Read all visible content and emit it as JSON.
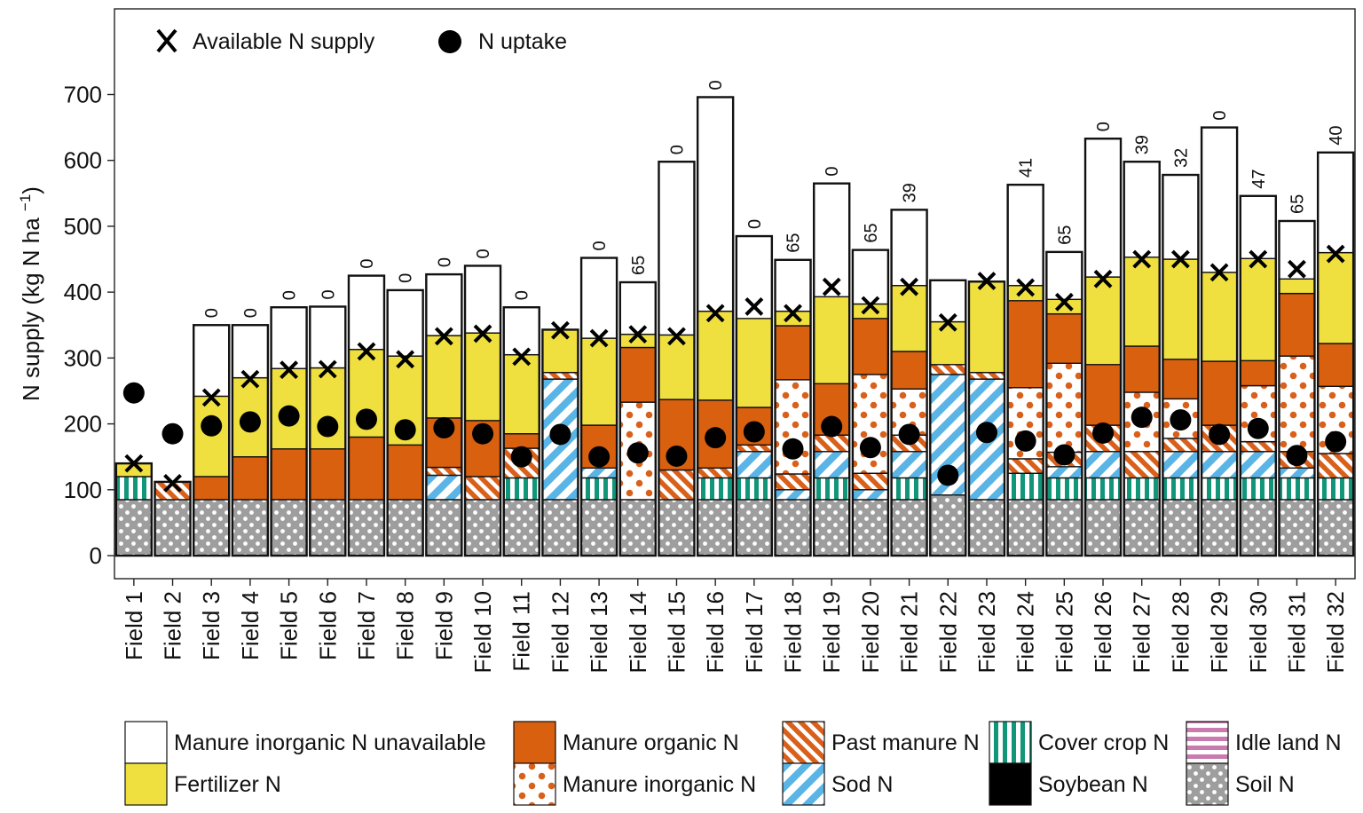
{
  "chart_data": {
    "type": "bar",
    "stacked": true,
    "ylabel": "N supply (kg N ha",
    "ylabel_sup": "−1",
    "ylabel_close": ")",
    "ylim": [
      -35,
      830
    ],
    "yticks": [
      0,
      100,
      200,
      300,
      400,
      500,
      600,
      700
    ],
    "ytick_labels": [
      "0",
      "100",
      "200",
      "300",
      "400",
      "500",
      "600",
      "700"
    ],
    "categories": [
      "Field 1",
      "Field 2",
      "Field 3",
      "Field 4",
      "Field 5",
      "Field 6",
      "Field 7",
      "Field 8",
      "Field 9",
      "Field 10",
      "Field 11",
      "Field 12",
      "Field 13",
      "Field 14",
      "Field 15",
      "Field 16",
      "Field 17",
      "Field 18",
      "Field 19",
      "Field 20",
      "Field 21",
      "Field 22",
      "Field 23",
      "Field 24",
      "Field 25",
      "Field 26",
      "Field 27",
      "Field 28",
      "Field 29",
      "Field 30",
      "Field 31",
      "Field 32"
    ],
    "series": [
      {
        "key": "soil",
        "name": "Soil N",
        "color": "#9e9e9e",
        "values": [
          85,
          85,
          85,
          85,
          85,
          85,
          85,
          85,
          85,
          85,
          85,
          85,
          85,
          85,
          85,
          85,
          85,
          85,
          85,
          85,
          85,
          92,
          85,
          85,
          85,
          85,
          85,
          85,
          85,
          85,
          85,
          85
        ]
      },
      {
        "key": "idle",
        "name": "Idle land N",
        "color": "#c97bb0",
        "values": [
          0,
          0,
          0,
          0,
          0,
          0,
          0,
          0,
          0,
          0,
          0,
          0,
          0,
          0,
          0,
          0,
          0,
          0,
          0,
          0,
          0,
          0,
          0,
          0,
          0,
          0,
          0,
          0,
          0,
          0,
          0,
          0
        ]
      },
      {
        "key": "soy",
        "name": "Soybean N",
        "color": "#000000",
        "values": [
          0,
          0,
          0,
          0,
          0,
          0,
          0,
          0,
          0,
          0,
          0,
          0,
          0,
          0,
          0,
          0,
          0,
          0,
          0,
          0,
          0,
          0,
          0,
          0,
          0,
          0,
          0,
          0,
          0,
          0,
          0,
          0
        ]
      },
      {
        "key": "cover",
        "name": "Cover crop N",
        "color": "#11967a",
        "values": [
          35,
          0,
          0,
          0,
          0,
          0,
          0,
          0,
          0,
          0,
          33,
          0,
          33,
          0,
          0,
          33,
          33,
          0,
          33,
          0,
          33,
          0,
          0,
          40,
          33,
          33,
          33,
          33,
          33,
          33,
          33,
          33
        ]
      },
      {
        "key": "sod",
        "name": "Sod N",
        "color": "#5ab4e5",
        "values": [
          0,
          0,
          0,
          0,
          0,
          0,
          0,
          0,
          37,
          0,
          0,
          183,
          15,
          0,
          0,
          0,
          40,
          15,
          40,
          15,
          40,
          183,
          183,
          0,
          17,
          40,
          0,
          40,
          40,
          40,
          15,
          0
        ]
      },
      {
        "key": "past",
        "name": "Past manure N",
        "color": "#d9601a",
        "values": [
          0,
          27,
          0,
          0,
          0,
          0,
          0,
          0,
          12,
          35,
          45,
          10,
          0,
          0,
          45,
          15,
          10,
          24,
          25,
          25,
          25,
          15,
          10,
          22,
          22,
          40,
          40,
          20,
          40,
          15,
          25,
          37
        ]
      },
      {
        "key": "minorg",
        "name": "Manure inorganic N",
        "color": "#d9601a",
        "values": [
          0,
          0,
          0,
          0,
          0,
          0,
          0,
          0,
          0,
          0,
          0,
          0,
          0,
          148,
          0,
          0,
          0,
          143,
          0,
          150,
          70,
          0,
          0,
          108,
          135,
          0,
          90,
          60,
          0,
          85,
          145,
          102
        ]
      },
      {
        "key": "morg",
        "name": "Manure organic N",
        "color": "#d9600f",
        "values": [
          0,
          0,
          35,
          65,
          77,
          77,
          95,
          83,
          75,
          85,
          22,
          0,
          65,
          83,
          107,
          103,
          57,
          82,
          78,
          85,
          57,
          0,
          0,
          132,
          75,
          92,
          70,
          60,
          97,
          38,
          95,
          65
        ]
      },
      {
        "key": "fert",
        "name": "Fertilizer N",
        "color": "#f0e03f",
        "values": [
          20,
          0,
          122,
          120,
          122,
          123,
          133,
          135,
          125,
          133,
          120,
          65,
          132,
          20,
          98,
          135,
          135,
          22,
          132,
          22,
          100,
          65,
          138,
          23,
          22,
          133,
          135,
          152,
          135,
          155,
          22,
          138
        ]
      },
      {
        "key": "unav",
        "name": "Manure inorganic N unavailable",
        "color": "#ffffff",
        "values": [
          0,
          0,
          108,
          80,
          93,
          93,
          112,
          100,
          93,
          102,
          72,
          0,
          122,
          79,
          263,
          325,
          125,
          78,
          172,
          82,
          115,
          63,
          0,
          153,
          72,
          210,
          145,
          128,
          220,
          95,
          88,
          152
        ]
      }
    ],
    "available_n_supply": {
      "name": "Available N supply",
      "values": [
        140,
        110,
        240,
        268,
        282,
        283,
        310,
        298,
        333,
        337,
        302,
        342,
        330,
        336,
        333,
        368,
        378,
        368,
        408,
        380,
        408,
        354,
        417,
        407,
        385,
        420,
        450,
        450,
        430,
        450,
        435,
        458
      ]
    },
    "n_uptake": {
      "name": "N uptake",
      "values": [
        247,
        185,
        197,
        203,
        212,
        196,
        207,
        191,
        194,
        185,
        150,
        184,
        150,
        156,
        151,
        179,
        188,
        162,
        196,
        164,
        184,
        122,
        187,
        174,
        153,
        186,
        210,
        206,
        184,
        193,
        152,
        173
      ]
    },
    "bar_top_labels": [
      "",
      "",
      "0",
      "0",
      "0",
      "0",
      "0",
      "0",
      "0",
      "0",
      "0",
      "",
      "0",
      "65",
      "0",
      "0",
      "0",
      "65",
      "0",
      "65",
      "39",
      "",
      "",
      "41",
      "65",
      "0",
      "39",
      "32",
      "0",
      "47",
      "65",
      "40"
    ],
    "legend": {
      "top": {
        "x_label": "Available N supply",
        "dot_label": "N uptake"
      },
      "bottom": [
        {
          "key": "unav",
          "label": "Manure inorganic N unavailable"
        },
        {
          "key": "morg",
          "label": "Manure organic N"
        },
        {
          "key": "past",
          "label": "Past manure N"
        },
        {
          "key": "cover",
          "label": "Cover crop N"
        },
        {
          "key": "idle",
          "label": "Idle land N"
        },
        {
          "key": "fert",
          "label": "Fertilizer N"
        },
        {
          "key": "minorg",
          "label": "Manure inorganic N"
        },
        {
          "key": "sod",
          "label": "Sod N"
        },
        {
          "key": "soy",
          "label": "Soybean N"
        },
        {
          "key": "soil",
          "label": "Soil N"
        }
      ]
    }
  }
}
